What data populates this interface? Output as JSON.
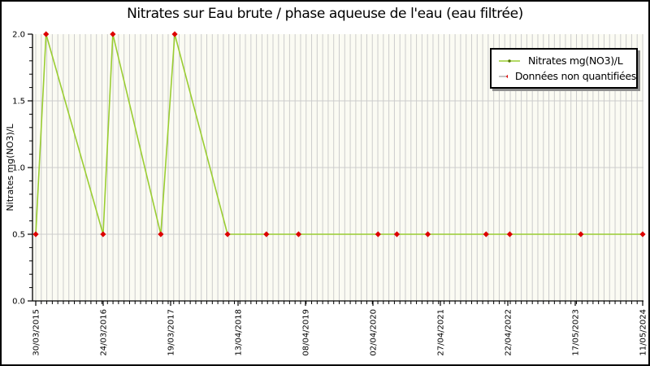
{
  "title": "Nitrates sur Eau brute / phase aqueuse de l'eau (eau filtrée)",
  "legend": {
    "items": [
      {
        "label": "Nitrates mg(NO3)/L"
      },
      {
        "label": "Données non quantifiées"
      }
    ]
  },
  "colors": {
    "series_line": "#9acd32",
    "series_marker_dot": "#557700",
    "non_quantified_marker": "#dd0000",
    "legend_nq_line": "#888888",
    "grid": "#cccccc",
    "plot_background": "#fbfbf3",
    "axis": "#000000",
    "text": "#000000"
  },
  "chart_data": {
    "type": "line",
    "title": "Nitrates sur Eau brute / phase aqueuse de l'eau (eau filtrée)",
    "xlabel": "",
    "ylabel": "Nitrates mg(NO3)/L",
    "ylim": [
      0.0,
      2.0
    ],
    "yticks": [
      0.0,
      0.5,
      1.0,
      1.5,
      2.0
    ],
    "ytick_labels": [
      "0.0",
      "0.5",
      "1.0",
      "1.5",
      "2.0"
    ],
    "y_minor_step": 0.1,
    "xtick_labels": [
      "30/03/2015",
      "24/03/2016",
      "19/03/2017",
      "13/04/2018",
      "08/04/2019",
      "02/04/2020",
      "27/04/2021",
      "22/04/2022",
      "17/05/2023",
      "11/05/2024"
    ],
    "x_minor_divisions": 110,
    "grid": {
      "vertical_minor": true,
      "horizontal_at": [
        0.5,
        1.0,
        1.5
      ]
    },
    "legend_position": "top-right",
    "series": [
      {
        "name": "Nitrates mg(NO3)/L",
        "points": [
          {
            "x_frac": 0.0,
            "y": 0.5,
            "non_quantified": true
          },
          {
            "x_frac": 0.017,
            "y": 2.0,
            "non_quantified": true
          },
          {
            "x_frac": 0.111,
            "y": 0.5,
            "non_quantified": true
          },
          {
            "x_frac": 0.127,
            "y": 2.0,
            "non_quantified": true
          },
          {
            "x_frac": 0.206,
            "y": 0.5,
            "non_quantified": true
          },
          {
            "x_frac": 0.229,
            "y": 2.0,
            "non_quantified": true
          },
          {
            "x_frac": 0.316,
            "y": 0.5,
            "non_quantified": true
          },
          {
            "x_frac": 0.38,
            "y": 0.5,
            "non_quantified": true
          },
          {
            "x_frac": 0.433,
            "y": 0.5,
            "non_quantified": true
          },
          {
            "x_frac": 0.564,
            "y": 0.5,
            "non_quantified": true
          },
          {
            "x_frac": 0.595,
            "y": 0.5,
            "non_quantified": true
          },
          {
            "x_frac": 0.646,
            "y": 0.5,
            "non_quantified": true
          },
          {
            "x_frac": 0.742,
            "y": 0.5,
            "non_quantified": true
          },
          {
            "x_frac": 0.781,
            "y": 0.5,
            "non_quantified": true
          },
          {
            "x_frac": 0.898,
            "y": 0.5,
            "non_quantified": true
          },
          {
            "x_frac": 1.0,
            "y": 0.5,
            "non_quantified": true
          }
        ]
      }
    ]
  }
}
